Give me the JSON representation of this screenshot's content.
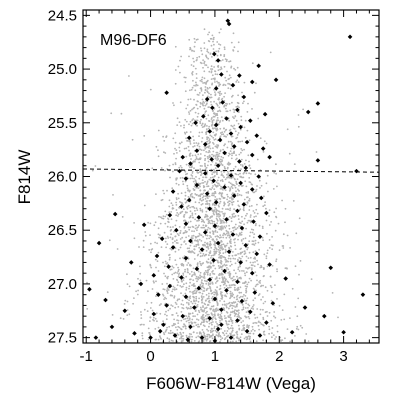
{
  "chart_data": {
    "type": "scatter",
    "title": "",
    "panel_label": "M96-DF6",
    "xlabel": "F606W-F814W (Vega)",
    "ylabel": "F814W",
    "xlim": [
      -1.05,
      3.55
    ],
    "ylim": [
      27.55,
      24.45
    ],
    "y_inverted": true,
    "xticks": [
      -1,
      0,
      1,
      2,
      3
    ],
    "xtick_labels": [
      "-1",
      "0",
      "1",
      "2",
      "3"
    ],
    "yticks": [
      24.5,
      25.0,
      25.5,
      26.0,
      26.5,
      27.0,
      27.5
    ],
    "ytick_labels": [
      "24.5",
      "25.0",
      "25.5",
      "26.0",
      "26.5",
      "27.0",
      "27.5"
    ],
    "grid": false,
    "reference_line": {
      "style": "dashed",
      "x": [
        -1.05,
        3.55
      ],
      "y": [
        25.93,
        25.96
      ]
    },
    "colors": {
      "black_stars": "#000000",
      "grey_stars": "#b4b4b4",
      "axes": "#000000"
    },
    "series": [
      {
        "color": "#000000",
        "marker": "diamond",
        "points": [
          [
            1.2,
            24.55
          ],
          [
            1.22,
            24.58
          ],
          [
            3.1,
            24.7
          ],
          [
            0.99,
            24.86
          ],
          [
            1.05,
            24.92
          ],
          [
            1.68,
            24.97
          ],
          [
            1.1,
            25.05
          ],
          [
            1.38,
            25.06
          ],
          [
            1.95,
            25.1
          ],
          [
            1.58,
            25.12
          ],
          [
            1.28,
            25.15
          ],
          [
            1.02,
            25.18
          ],
          [
            0.25,
            25.22
          ],
          [
            0.88,
            25.28
          ],
          [
            1.45,
            25.26
          ],
          [
            1.12,
            25.31
          ],
          [
            2.6,
            25.32
          ],
          [
            0.96,
            25.36
          ],
          [
            1.35,
            25.38
          ],
          [
            1.78,
            25.42
          ],
          [
            0.82,
            25.44
          ],
          [
            1.18,
            25.46
          ],
          [
            1.55,
            25.48
          ],
          [
            2.45,
            25.4
          ],
          [
            0.7,
            25.5
          ],
          [
            1.02,
            25.52
          ],
          [
            1.4,
            25.54
          ],
          [
            0.92,
            25.58
          ],
          [
            1.25,
            25.6
          ],
          [
            1.65,
            25.62
          ],
          [
            0.6,
            25.64
          ],
          [
            1.08,
            25.66
          ],
          [
            1.5,
            25.68
          ],
          [
            0.85,
            25.7
          ],
          [
            1.3,
            25.72
          ],
          [
            1.75,
            25.74
          ],
          [
            0.72,
            25.76
          ],
          [
            1.15,
            25.78
          ],
          [
            1.58,
            25.8
          ],
          [
            0.5,
            25.82
          ],
          [
            0.95,
            25.84
          ],
          [
            1.38,
            25.86
          ],
          [
            1.85,
            25.82
          ],
          [
            0.62,
            25.88
          ],
          [
            1.05,
            25.9
          ],
          [
            1.48,
            25.92
          ],
          [
            0.45,
            25.95
          ],
          [
            0.85,
            25.97
          ],
          [
            1.25,
            25.99
          ],
          [
            1.68,
            26.0
          ],
          [
            2.6,
            25.85
          ],
          [
            3.2,
            25.95
          ],
          [
            0.55,
            26.02
          ],
          [
            0.98,
            26.04
          ],
          [
            1.4,
            26.06
          ],
          [
            0.72,
            26.08
          ],
          [
            1.15,
            26.1
          ],
          [
            1.58,
            26.12
          ],
          [
            0.35,
            26.14
          ],
          [
            0.88,
            26.16
          ],
          [
            1.3,
            26.18
          ],
          [
            1.72,
            26.2
          ],
          [
            0.6,
            26.22
          ],
          [
            1.02,
            26.24
          ],
          [
            1.45,
            26.26
          ],
          [
            0.48,
            26.28
          ],
          [
            0.92,
            26.3
          ],
          [
            1.35,
            26.32
          ],
          [
            1.8,
            26.34
          ],
          [
            0.3,
            26.36
          ],
          [
            0.75,
            26.38
          ],
          [
            1.18,
            26.4
          ],
          [
            1.6,
            26.42
          ],
          [
            -0.55,
            26.35
          ],
          [
            -0.1,
            26.45
          ],
          [
            0.55,
            26.44
          ],
          [
            1.0,
            26.46
          ],
          [
            1.42,
            26.48
          ],
          [
            0.4,
            26.5
          ],
          [
            0.85,
            26.52
          ],
          [
            1.28,
            26.54
          ],
          [
            1.7,
            26.56
          ],
          [
            0.18,
            26.58
          ],
          [
            0.62,
            26.6
          ],
          [
            1.05,
            26.62
          ],
          [
            1.48,
            26.64
          ],
          [
            -0.8,
            26.62
          ],
          [
            0.35,
            26.66
          ],
          [
            0.8,
            26.68
          ],
          [
            1.22,
            26.7
          ],
          [
            1.65,
            26.72
          ],
          [
            0.1,
            26.74
          ],
          [
            0.55,
            26.76
          ],
          [
            0.98,
            26.78
          ],
          [
            1.4,
            26.8
          ],
          [
            1.85,
            26.82
          ],
          [
            -0.3,
            26.8
          ],
          [
            0.28,
            26.84
          ],
          [
            0.72,
            26.86
          ],
          [
            1.15,
            26.88
          ],
          [
            1.58,
            26.9
          ],
          [
            0.05,
            26.92
          ],
          [
            0.48,
            26.94
          ],
          [
            0.92,
            26.96
          ],
          [
            1.35,
            26.98
          ],
          [
            2.1,
            26.95
          ],
          [
            2.8,
            26.85
          ],
          [
            -0.15,
            27.0
          ],
          [
            0.3,
            27.02
          ],
          [
            0.75,
            27.04
          ],
          [
            1.18,
            27.06
          ],
          [
            1.62,
            27.08
          ],
          [
            -0.95,
            27.05
          ],
          [
            0.12,
            27.1
          ],
          [
            0.55,
            27.12
          ],
          [
            1.0,
            27.14
          ],
          [
            1.42,
            27.16
          ],
          [
            1.9,
            27.18
          ],
          [
            3.3,
            27.1
          ],
          [
            -0.7,
            27.15
          ],
          [
            0.25,
            27.2
          ],
          [
            0.68,
            27.22
          ],
          [
            1.1,
            27.24
          ],
          [
            1.55,
            27.26
          ],
          [
            2.4,
            27.22
          ],
          [
            -0.4,
            27.25
          ],
          [
            0.05,
            27.28
          ],
          [
            0.5,
            27.3
          ],
          [
            0.92,
            27.32
          ],
          [
            1.35,
            27.34
          ],
          [
            1.8,
            27.36
          ],
          [
            2.7,
            27.3
          ],
          [
            -0.6,
            27.4
          ],
          [
            0.2,
            27.38
          ],
          [
            0.62,
            27.4
          ],
          [
            1.05,
            27.42
          ],
          [
            1.5,
            27.44
          ],
          [
            -0.25,
            27.46
          ],
          [
            0.38,
            27.48
          ],
          [
            0.8,
            27.5
          ],
          [
            1.25,
            27.5
          ],
          [
            1.7,
            27.48
          ],
          [
            2.2,
            27.45
          ],
          [
            3.0,
            27.45
          ],
          [
            -0.85,
            27.5
          ],
          [
            0.0,
            27.5
          ],
          [
            0.58,
            27.52
          ],
          [
            1.0,
            27.53
          ],
          [
            0.15,
            27.44
          ],
          [
            1.1,
            27.38
          ]
        ]
      },
      {
        "color": "#b4b4b4",
        "marker": "dot",
        "distribution": {
          "center_color": 0.95,
          "color_spread": 0.55,
          "mag_min": 24.6,
          "mag_max": 27.55,
          "count": 3200
        }
      }
    ]
  }
}
